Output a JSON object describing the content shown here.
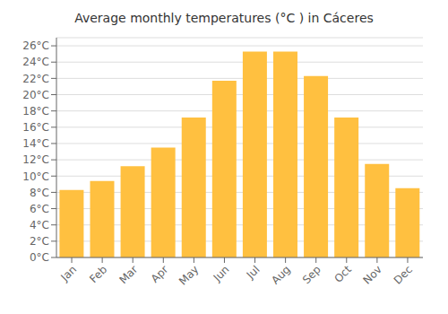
{
  "chart_data": {
    "type": "bar",
    "title": "Average monthly temperatures (°C ) in Cáceres",
    "categories": [
      "Jan",
      "Feb",
      "Mar",
      "Apr",
      "May",
      "Jun",
      "Jul",
      "Aug",
      "Sep",
      "Oct",
      "Nov",
      "Dec"
    ],
    "values": [
      8.3,
      9.4,
      11.2,
      13.5,
      17.2,
      21.7,
      25.3,
      25.3,
      22.3,
      17.2,
      11.5,
      8.5
    ],
    "color": "#FFC040",
    "ylim": [
      0,
      27
    ],
    "yticks": [
      {
        "value": 0,
        "label": "0°C"
      },
      {
        "value": 2,
        "label": "2°C"
      },
      {
        "value": 4,
        "label": "4°C"
      },
      {
        "value": 6,
        "label": "6°C"
      },
      {
        "value": 8,
        "label": "8°C"
      },
      {
        "value": 10,
        "label": "10°C"
      },
      {
        "value": 12,
        "label": "12°C"
      },
      {
        "value": 14,
        "label": "14°C"
      },
      {
        "value": 16,
        "label": "16°C"
      },
      {
        "value": 18,
        "label": "18°C"
      },
      {
        "value": 20,
        "label": "20°C"
      },
      {
        "value": 22,
        "label": "22°C"
      },
      {
        "value": 24,
        "label": "24°C"
      },
      {
        "value": 26,
        "label": "26°C"
      }
    ],
    "grid": true
  }
}
